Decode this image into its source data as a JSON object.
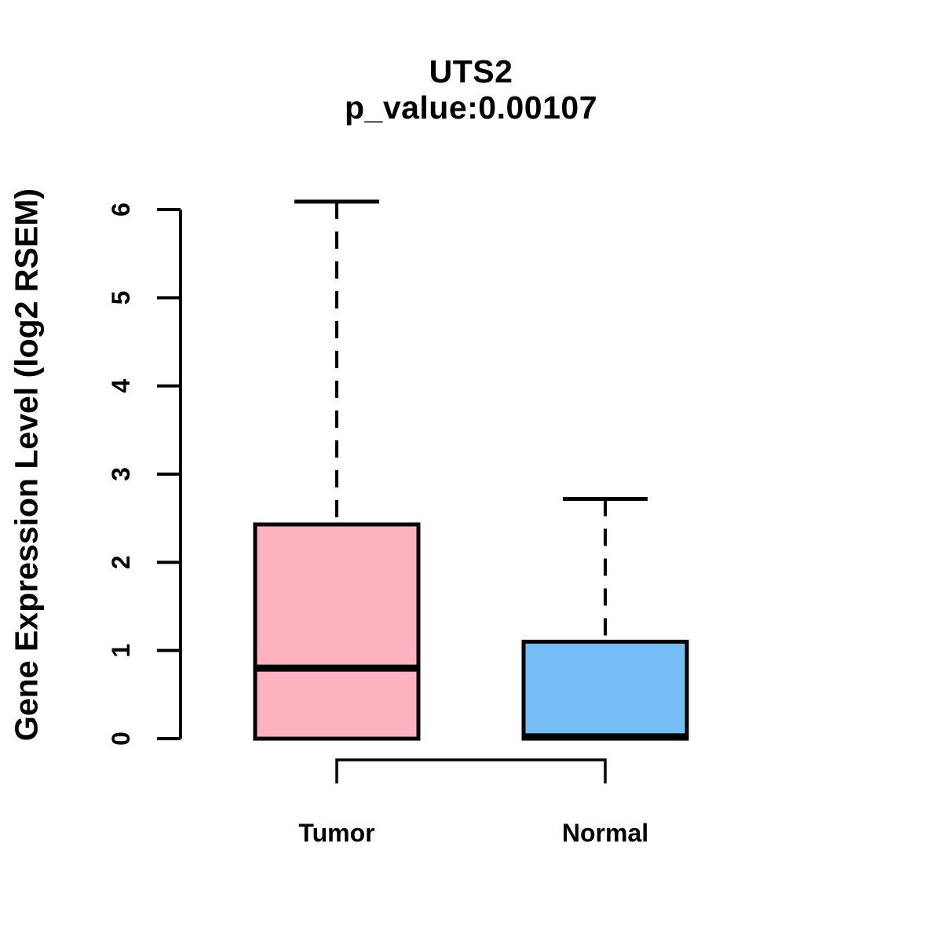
{
  "title": {
    "gene": "UTS2",
    "p_value_line": "p_value:0.00107"
  },
  "chart_data": {
    "type": "boxplot",
    "title": "UTS2",
    "subtitle": "p_value:0.00107",
    "ylabel": "Gene Expression Level (log2 RSEM)",
    "xlabel": "",
    "ylim": [
      0,
      6.2
    ],
    "yticks": [
      0,
      1,
      2,
      3,
      4,
      5,
      6
    ],
    "grid": false,
    "legend": "none",
    "groups": [
      {
        "label": "Tumor",
        "color": "#FFB3C1",
        "whisker_low": 0,
        "q1": 0,
        "median": 0.8,
        "q3": 2.43,
        "whisker_high": 6.09
      },
      {
        "label": "Normal",
        "color": "#74BEF5",
        "whisker_low": 0,
        "q1": 0,
        "median": 0.02,
        "q3": 1.1,
        "whisker_high": 2.72
      }
    ],
    "comparison_bracket": {
      "between": [
        "Tumor",
        "Normal"
      ]
    },
    "stroke_color": "#000000",
    "background": "#FFFFFF"
  }
}
